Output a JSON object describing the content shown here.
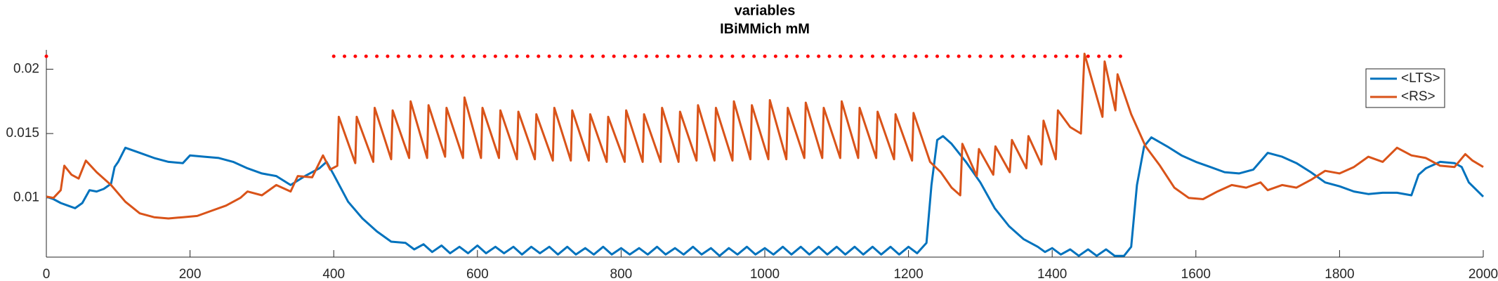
{
  "chart_data": {
    "type": "line",
    "title": [
      "variables",
      "IBiMMich mM"
    ],
    "xlim": [
      0,
      2000
    ],
    "xticks": [
      0,
      200,
      400,
      600,
      800,
      1000,
      1200,
      1400,
      1600,
      1800,
      2000
    ],
    "ylim": [
      0.0054,
      0.0215
    ],
    "yticks": [
      0.01,
      0.015,
      0.02
    ],
    "legend": "upper-right",
    "series": [
      {
        "name": "<LTS>",
        "color": "#0072bd",
        "x": [
          0,
          10,
          20,
          30,
          40,
          50,
          60,
          70,
          80,
          90,
          95,
          100,
          110,
          130,
          150,
          170,
          190,
          200,
          220,
          240,
          260,
          280,
          300,
          320,
          340,
          360,
          380,
          390,
          400,
          420,
          440,
          460,
          480,
          500,
          512,
          525,
          537,
          550,
          562,
          575,
          587,
          600,
          612,
          625,
          637,
          650,
          662,
          675,
          687,
          700,
          712,
          725,
          737,
          750,
          762,
          775,
          787,
          800,
          812,
          825,
          837,
          850,
          862,
          875,
          887,
          900,
          912,
          925,
          937,
          950,
          962,
          975,
          987,
          1000,
          1012,
          1025,
          1037,
          1050,
          1062,
          1075,
          1087,
          1100,
          1112,
          1125,
          1137,
          1150,
          1162,
          1175,
          1187,
          1200,
          1212,
          1225,
          1232,
          1240,
          1248,
          1260,
          1280,
          1300,
          1320,
          1340,
          1360,
          1380,
          1390,
          1400,
          1412,
          1425,
          1437,
          1450,
          1462,
          1475,
          1487,
          1500,
          1510,
          1518,
          1528,
          1538,
          1560,
          1580,
          1600,
          1620,
          1640,
          1660,
          1680,
          1700,
          1720,
          1740,
          1760,
          1780,
          1800,
          1820,
          1840,
          1860,
          1880,
          1900,
          1910,
          1920,
          1940,
          1960,
          1970,
          1980,
          2000
        ],
        "values": [
          0.0101,
          0.0099,
          0.0096,
          0.0094,
          0.0092,
          0.0096,
          0.0106,
          0.0105,
          0.0107,
          0.0111,
          0.0124,
          0.0128,
          0.0139,
          0.0135,
          0.0131,
          0.0128,
          0.0127,
          0.0133,
          0.0132,
          0.0131,
          0.0128,
          0.0123,
          0.0119,
          0.0117,
          0.011,
          0.0117,
          0.0123,
          0.0128,
          0.0118,
          0.0097,
          0.0084,
          0.0074,
          0.0066,
          0.0065,
          0.006,
          0.0064,
          0.0058,
          0.0063,
          0.0057,
          0.0062,
          0.0057,
          0.0063,
          0.0057,
          0.0062,
          0.0057,
          0.0062,
          0.0056,
          0.0062,
          0.0057,
          0.0062,
          0.0056,
          0.0062,
          0.0056,
          0.0061,
          0.0056,
          0.0062,
          0.0056,
          0.0061,
          0.0056,
          0.0061,
          0.0056,
          0.0062,
          0.0056,
          0.0061,
          0.0056,
          0.0062,
          0.0056,
          0.0061,
          0.0055,
          0.0061,
          0.0056,
          0.0062,
          0.0056,
          0.0061,
          0.0056,
          0.0062,
          0.0056,
          0.0062,
          0.0056,
          0.0062,
          0.0056,
          0.0062,
          0.0056,
          0.0062,
          0.0056,
          0.0062,
          0.0056,
          0.0062,
          0.0056,
          0.0062,
          0.0057,
          0.0065,
          0.011,
          0.0145,
          0.0148,
          0.0142,
          0.0128,
          0.0112,
          0.0092,
          0.0078,
          0.0068,
          0.0062,
          0.0058,
          0.0061,
          0.0056,
          0.006,
          0.0055,
          0.006,
          0.0055,
          0.006,
          0.0055,
          0.0055,
          0.0062,
          0.011,
          0.014,
          0.0147,
          0.014,
          0.0133,
          0.0128,
          0.0124,
          0.012,
          0.0119,
          0.0122,
          0.0135,
          0.0132,
          0.0127,
          0.012,
          0.0112,
          0.0109,
          0.0105,
          0.0103,
          0.0104,
          0.0104,
          0.0102,
          0.0118,
          0.0123,
          0.0128,
          0.0127,
          0.0124,
          0.0112,
          0.0101
        ]
      },
      {
        "name": "<RS>",
        "color": "#d95319",
        "x": [
          0,
          10,
          20,
          25,
          35,
          45,
          55,
          70,
          90,
          110,
          130,
          150,
          170,
          190,
          210,
          230,
          250,
          270,
          280,
          300,
          320,
          340,
          350,
          370,
          385,
          395,
          405,
          407,
          430,
          432,
          455,
          457,
          480,
          482,
          505,
          507,
          530,
          532,
          555,
          557,
          580,
          582,
          605,
          607,
          630,
          632,
          655,
          657,
          680,
          682,
          705,
          707,
          730,
          732,
          755,
          757,
          780,
          782,
          805,
          807,
          830,
          832,
          855,
          857,
          880,
          882,
          905,
          907,
          930,
          932,
          955,
          957,
          980,
          982,
          1005,
          1007,
          1030,
          1032,
          1055,
          1057,
          1080,
          1082,
          1105,
          1107,
          1130,
          1132,
          1155,
          1157,
          1180,
          1182,
          1205,
          1207,
          1230,
          1245,
          1260,
          1272,
          1275,
          1295,
          1298,
          1318,
          1321,
          1341,
          1344,
          1364,
          1367,
          1385,
          1388,
          1405,
          1408,
          1425,
          1440,
          1445,
          1470,
          1473,
          1488,
          1491,
          1510,
          1530,
          1550,
          1570,
          1590,
          1610,
          1630,
          1650,
          1670,
          1690,
          1700,
          1720,
          1740,
          1760,
          1780,
          1800,
          1820,
          1840,
          1860,
          1880,
          1900,
          1920,
          1940,
          1960,
          1975,
          1985,
          2000
        ],
        "values": [
          0.0101,
          0.01,
          0.0106,
          0.0125,
          0.0118,
          0.0115,
          0.0129,
          0.012,
          0.011,
          0.0097,
          0.0088,
          0.0085,
          0.0084,
          0.0085,
          0.0086,
          0.009,
          0.0094,
          0.01,
          0.0105,
          0.0102,
          0.011,
          0.0105,
          0.0117,
          0.0116,
          0.0133,
          0.0122,
          0.0125,
          0.0163,
          0.0127,
          0.0163,
          0.0128,
          0.017,
          0.013,
          0.0168,
          0.0131,
          0.0175,
          0.0131,
          0.0172,
          0.0132,
          0.017,
          0.0131,
          0.0178,
          0.0131,
          0.017,
          0.0131,
          0.0168,
          0.013,
          0.0167,
          0.013,
          0.0165,
          0.0129,
          0.017,
          0.0129,
          0.0168,
          0.0129,
          0.0165,
          0.0128,
          0.0163,
          0.0128,
          0.0168,
          0.0128,
          0.0165,
          0.0128,
          0.017,
          0.0128,
          0.0167,
          0.0129,
          0.0172,
          0.0129,
          0.017,
          0.0129,
          0.0175,
          0.013,
          0.0172,
          0.013,
          0.0176,
          0.013,
          0.017,
          0.0131,
          0.0174,
          0.0131,
          0.017,
          0.0131,
          0.0175,
          0.0131,
          0.017,
          0.0131,
          0.0167,
          0.013,
          0.0165,
          0.0129,
          0.0166,
          0.0128,
          0.012,
          0.0108,
          0.0102,
          0.0142,
          0.0117,
          0.0138,
          0.0118,
          0.014,
          0.012,
          0.0145,
          0.0123,
          0.0148,
          0.0126,
          0.016,
          0.013,
          0.0168,
          0.0155,
          0.015,
          0.0212,
          0.0163,
          0.0206,
          0.0168,
          0.0196,
          0.0165,
          0.014,
          0.0125,
          0.0108,
          0.01,
          0.0099,
          0.0105,
          0.011,
          0.0108,
          0.0112,
          0.0106,
          0.011,
          0.0108,
          0.0114,
          0.0121,
          0.0119,
          0.0124,
          0.0132,
          0.0128,
          0.0139,
          0.0133,
          0.0131,
          0.0125,
          0.0124,
          0.0134,
          0.0129,
          0.0124
        ]
      }
    ],
    "spike_markers": {
      "color": "#ff0000",
      "x": [
        0,
        400,
        415,
        430,
        445,
        460,
        475,
        490,
        505,
        520,
        535,
        550,
        565,
        580,
        595,
        610,
        625,
        640,
        655,
        670,
        685,
        700,
        715,
        730,
        745,
        760,
        775,
        790,
        805,
        820,
        835,
        850,
        865,
        880,
        895,
        910,
        925,
        940,
        955,
        970,
        985,
        1000,
        1015,
        1030,
        1045,
        1060,
        1075,
        1090,
        1105,
        1120,
        1135,
        1150,
        1165,
        1180,
        1195,
        1210,
        1225,
        1240,
        1255,
        1270,
        1285,
        1300,
        1315,
        1330,
        1345,
        1360,
        1375,
        1390,
        1405,
        1420,
        1435,
        1450,
        1465,
        1480,
        1495
      ],
      "values": [
        0.021,
        0.021,
        0.021,
        0.021,
        0.021,
        0.021,
        0.021,
        0.021,
        0.021,
        0.021,
        0.021,
        0.021,
        0.021,
        0.021,
        0.021,
        0.021,
        0.021,
        0.021,
        0.021,
        0.021,
        0.021,
        0.021,
        0.021,
        0.021,
        0.021,
        0.021,
        0.021,
        0.021,
        0.021,
        0.021,
        0.021,
        0.021,
        0.021,
        0.021,
        0.021,
        0.021,
        0.021,
        0.021,
        0.021,
        0.021,
        0.021,
        0.021,
        0.021,
        0.021,
        0.021,
        0.021,
        0.021,
        0.021,
        0.021,
        0.021,
        0.021,
        0.021,
        0.021,
        0.021,
        0.021,
        0.021,
        0.021,
        0.021,
        0.021,
        0.021,
        0.021,
        0.021,
        0.021,
        0.021,
        0.021,
        0.021,
        0.021,
        0.021,
        0.021,
        0.021,
        0.021,
        0.021,
        0.021,
        0.021,
        0.021
      ]
    }
  }
}
